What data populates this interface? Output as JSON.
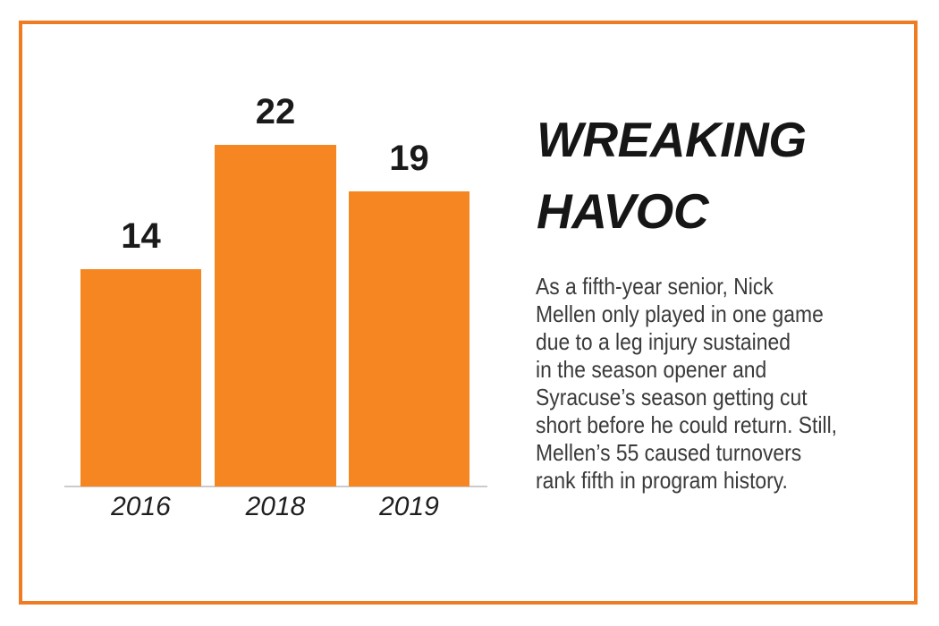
{
  "chart_data": {
    "type": "bar",
    "categories": [
      "2016",
      "2018",
      "2019"
    ],
    "values": [
      14,
      22,
      19
    ],
    "title": "WREAKING HAVOC",
    "xlabel": "",
    "ylabel": "",
    "ylim": [
      0,
      24
    ],
    "grid": false,
    "legend": false,
    "value_labels_shown": true,
    "annotation": "As a fifth-year senior, Nick Mellen only played in one game due to a leg injury sustained in the season opener and Syracuse’s season getting cut short before he could return. Still, Mellen’s 55 caused turnovers rank fifth in program history."
  },
  "infographic": {
    "title_lines": [
      "WREAKING",
      "HAVOC"
    ],
    "description": "As a fifth-year senior, Nick\nMellen only played in one game\ndue to a leg injury sustained\nin the season opener and\nSyracuse’s season getting cut\nshort before he could return. Still,\nMellen’s 55 caused turnovers\nrank fifth in program history."
  },
  "colors": {
    "border": "#EF7B22",
    "bar": "#F58621",
    "baseline": "#CBCBCB",
    "headline": "#161616",
    "body": "#3A3A3A",
    "label": "#1A1A1A"
  }
}
